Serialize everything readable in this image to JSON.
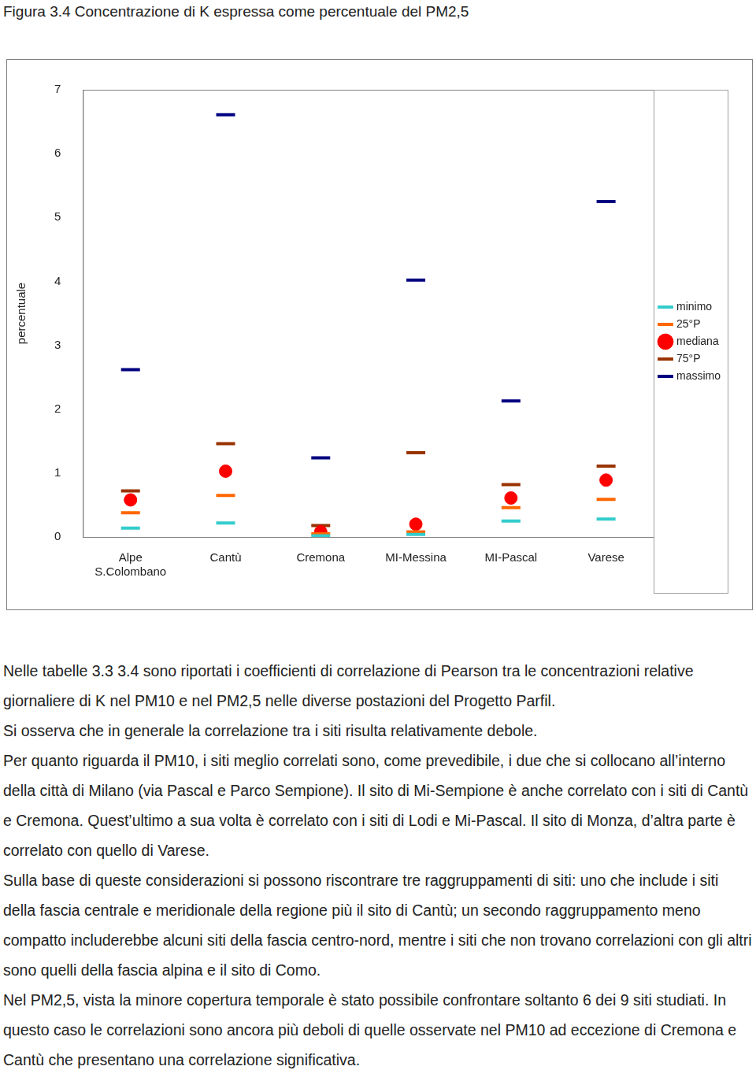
{
  "document": {
    "caption": "Figura 3.4 Concentrazione di K espressa come percentuale del PM2,5",
    "paragraphs": [
      "Nelle tabelle 3.3 3.4 sono riportati i coefficienti di correlazione di Pearson tra le concentrazioni relative giornaliere di K nel PM10 e nel PM2,5 nelle diverse postazioni del Progetto Parfil.",
      "Si osserva che in generale la correlazione tra i siti risulta relativamente debole.",
      "Per quanto riguarda il PM10, i siti meglio correlati sono, come prevedibile, i due che si collocano all’interno della città di Milano (via Pascal e Parco Sempione). Il sito di Mi-Sempione è anche correlato con i siti di Cantù e Cremona. Quest’ultimo a sua volta è correlato con i siti di Lodi e Mi-Pascal. Il sito di Monza, d’altra parte è correlato con quello di Varese.",
      "Sulla base di queste considerazioni si possono riscontrare tre raggruppamenti di siti: uno che include i siti della fascia centrale e meridionale della regione più il sito di Cantù; un secondo raggruppamento meno compatto includerebbe alcuni siti della fascia centro-nord, mentre i siti che non trovano correlazioni con gli altri sono quelli della fascia alpina e il sito di Como.",
      "Nel PM2,5, vista la minore copertura temporale è stato possibile confrontare soltanto 6 dei 9 siti studiati. In questo caso le correlazioni sono ancora più deboli di quelle osservate nel PM10  ad eccezione di Cremona e Cantù che presentano una correlazione significativa."
    ]
  },
  "chart_data": {
    "type": "scatter",
    "y_label": "percentuale",
    "categories": [
      "Alpe S.Colombano",
      "Cantù",
      "Cremona",
      "MI-Messina",
      "MI-Pascal",
      "Varese"
    ],
    "series": [
      {
        "name": "minimo",
        "color": "#33cccc",
        "marker": "dash",
        "values": [
          0.14,
          0.22,
          0.02,
          0.04,
          0.25,
          0.28
        ]
      },
      {
        "name": "25°P",
        "color": "#ff6600",
        "marker": "dash",
        "values": [
          0.38,
          0.65,
          0.05,
          0.08,
          0.46,
          0.59
        ]
      },
      {
        "name": "mediana",
        "color": "#ff0000",
        "marker": "circle",
        "values": [
          0.58,
          1.03,
          0.08,
          0.2,
          0.61,
          0.89
        ]
      },
      {
        "name": "75°P",
        "color": "#993300",
        "marker": "dash",
        "values": [
          0.72,
          1.46,
          0.18,
          1.32,
          0.82,
          1.11
        ]
      },
      {
        "name": "massimo",
        "color": "#000080",
        "marker": "dash",
        "values": [
          2.62,
          6.61,
          1.24,
          4.02,
          2.13,
          5.25
        ]
      }
    ],
    "ylim": [
      0,
      7
    ],
    "yticks": [
      0,
      1,
      2,
      3,
      4,
      5,
      6,
      7
    ],
    "grid": false,
    "legend": "right"
  }
}
